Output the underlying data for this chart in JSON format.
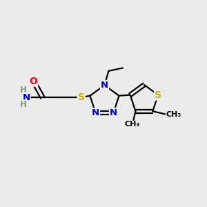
{
  "bg_color": "#ebebeb",
  "bond_color": "#000000",
  "bond_width": 1.6,
  "font_size": 9,
  "atom_colors": {
    "N": "#0000cc",
    "S": "#ccaa00",
    "O": "#ff0000",
    "C": "#000000",
    "H": "#7a9a7a"
  },
  "xlim": [
    0,
    10
  ],
  "ylim": [
    0,
    10
  ]
}
